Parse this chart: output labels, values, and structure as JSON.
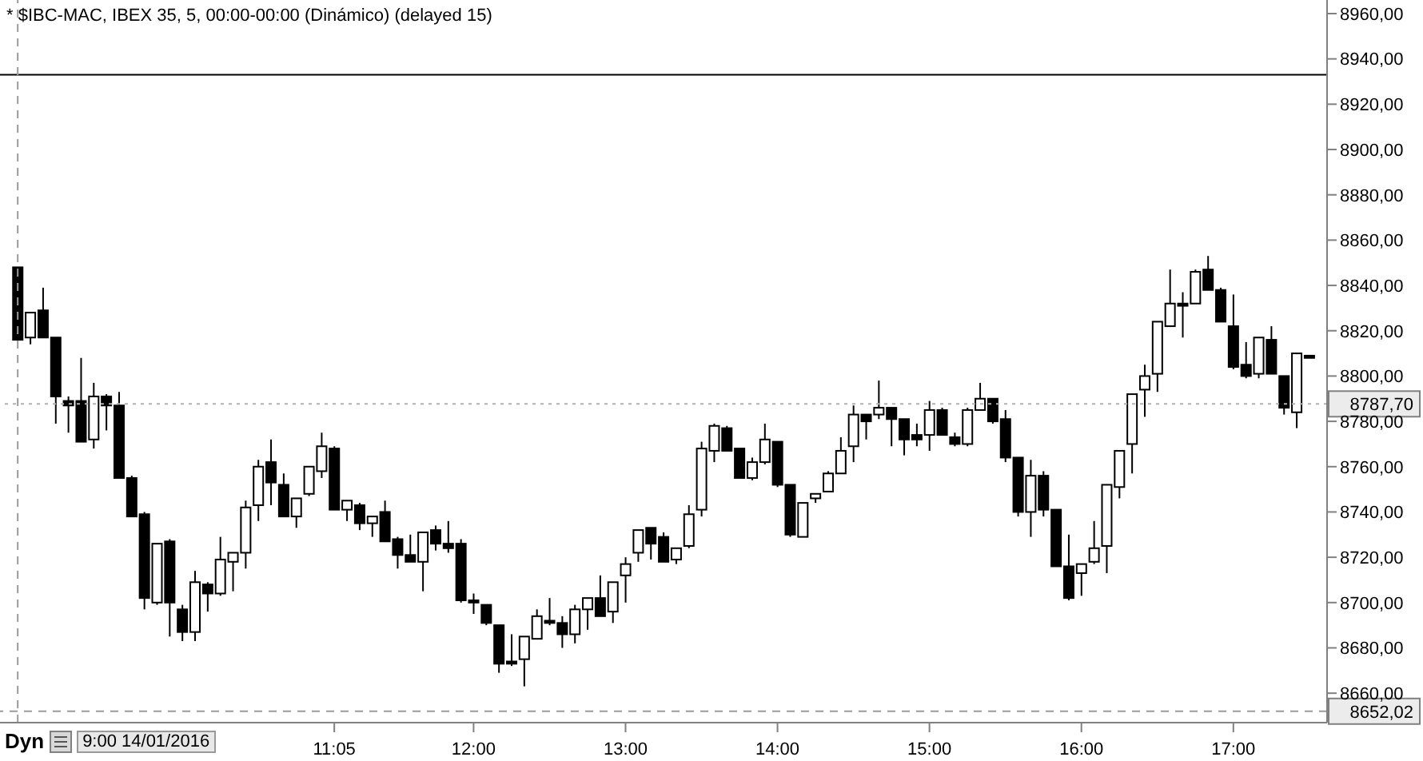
{
  "chart_data": {
    "type": "candlestick",
    "title": "* $IBC-MAC, IBEX 35, 5, 00:00-00:00 (Dinámico) (delayed 15)",
    "annotations": [
      "Dyn",
      "9:00 14/01/2016"
    ],
    "x": [
      "2016-01-14T09:00",
      "2016-01-14T09:05",
      "2016-01-14T09:10",
      "2016-01-14T09:15",
      "2016-01-14T09:20",
      "2016-01-14T09:25",
      "2016-01-14T09:30",
      "2016-01-14T09:35",
      "2016-01-14T09:40",
      "2016-01-14T09:45",
      "2016-01-14T09:50",
      "2016-01-14T09:55",
      "2016-01-14T10:00",
      "2016-01-14T10:05",
      "2016-01-14T10:10",
      "2016-01-14T10:15",
      "2016-01-14T10:20",
      "2016-01-14T10:25",
      "2016-01-14T10:30",
      "2016-01-14T10:35",
      "2016-01-14T10:40",
      "2016-01-14T10:45",
      "2016-01-14T10:50",
      "2016-01-14T10:55",
      "2016-01-14T11:00",
      "2016-01-14T11:05",
      "2016-01-14T11:10",
      "2016-01-14T11:15",
      "2016-01-14T11:20",
      "2016-01-14T11:25",
      "2016-01-14T11:30",
      "2016-01-14T11:35",
      "2016-01-14T11:40",
      "2016-01-14T11:45",
      "2016-01-14T11:50",
      "2016-01-14T11:55",
      "2016-01-14T12:00",
      "2016-01-14T12:05",
      "2016-01-14T12:10",
      "2016-01-14T12:15",
      "2016-01-14T12:20",
      "2016-01-14T12:25",
      "2016-01-14T12:30",
      "2016-01-14T12:35",
      "2016-01-14T12:40",
      "2016-01-14T12:45",
      "2016-01-14T12:50",
      "2016-01-14T12:55",
      "2016-01-14T13:00",
      "2016-01-14T13:05",
      "2016-01-14T13:10",
      "2016-01-14T13:15",
      "2016-01-14T13:20",
      "2016-01-14T13:25",
      "2016-01-14T13:30",
      "2016-01-14T13:35",
      "2016-01-14T13:40",
      "2016-01-14T13:45",
      "2016-01-14T13:50",
      "2016-01-14T13:55",
      "2016-01-14T14:00",
      "2016-01-14T14:05",
      "2016-01-14T14:10",
      "2016-01-14T14:15",
      "2016-01-14T14:20",
      "2016-01-14T14:25",
      "2016-01-14T14:30",
      "2016-01-14T14:35",
      "2016-01-14T14:40",
      "2016-01-14T14:45",
      "2016-01-14T14:50",
      "2016-01-14T14:55",
      "2016-01-14T15:00",
      "2016-01-14T15:05",
      "2016-01-14T15:10",
      "2016-01-14T15:15",
      "2016-01-14T15:20",
      "2016-01-14T15:25",
      "2016-01-14T15:30",
      "2016-01-14T15:35",
      "2016-01-14T15:40",
      "2016-01-14T15:45",
      "2016-01-14T15:50",
      "2016-01-14T15:55",
      "2016-01-14T16:00",
      "2016-01-14T16:05",
      "2016-01-14T16:10",
      "2016-01-14T16:15",
      "2016-01-14T16:20",
      "2016-01-14T16:25",
      "2016-01-14T16:30",
      "2016-01-14T16:35",
      "2016-01-14T16:40",
      "2016-01-14T16:45",
      "2016-01-14T16:50",
      "2016-01-14T16:55",
      "2016-01-14T17:00",
      "2016-01-14T17:05",
      "2016-01-14T17:10",
      "2016-01-14T17:15",
      "2016-01-14T17:20",
      "2016-01-14T17:25",
      "2016-01-14T17:30"
    ],
    "ohlc": [
      [
        8848,
        8848,
        8816,
        8816
      ],
      [
        8817,
        8828,
        8814,
        8828
      ],
      [
        8829,
        8839,
        8817,
        8817
      ],
      [
        8817,
        8817,
        8779,
        8791
      ],
      [
        8789,
        8791,
        8775,
        8787
      ],
      [
        8789,
        8808,
        8771,
        8771
      ],
      [
        8772,
        8797,
        8768,
        8791
      ],
      [
        8791,
        8792,
        8776,
        8787
      ],
      [
        8787,
        8793,
        8755,
        8755
      ],
      [
        8755,
        8756,
        8738,
        8738
      ],
      [
        8739,
        8740,
        8697,
        8702
      ],
      [
        8700,
        8726,
        8699,
        8726
      ],
      [
        8727,
        8728,
        8685,
        8700
      ],
      [
        8697,
        8699,
        8683,
        8687
      ],
      [
        8687,
        8714,
        8683,
        8709
      ],
      [
        8708,
        8709,
        8696,
        8704
      ],
      [
        8704,
        8729,
        8703,
        8719
      ],
      [
        8718,
        8722,
        8705,
        8722
      ],
      [
        8722,
        8745,
        8715,
        8742
      ],
      [
        8743,
        8763,
        8736,
        8760
      ],
      [
        8762,
        8772,
        8743,
        8753
      ],
      [
        8752,
        8757,
        8738,
        8738
      ],
      [
        8738,
        8746,
        8733,
        8746
      ],
      [
        8748,
        8760,
        8747,
        8760
      ],
      [
        8758,
        8775,
        8755,
        8769
      ],
      [
        8768,
        8769,
        8741,
        8741
      ],
      [
        8741,
        8745,
        8736,
        8745
      ],
      [
        8743,
        8744,
        8732,
        8735
      ],
      [
        8735,
        8738,
        8729,
        8738
      ],
      [
        8740,
        8745,
        8727,
        8727
      ],
      [
        8728,
        8729,
        8715,
        8721
      ],
      [
        8721,
        8730,
        8718,
        8718
      ],
      [
        8718,
        8731,
        8705,
        8731
      ],
      [
        8732,
        8734,
        8723,
        8726
      ],
      [
        8726,
        8736,
        8722,
        8724
      ],
      [
        8726,
        8728,
        8700,
        8701
      ],
      [
        8701,
        8704,
        8695,
        8700
      ],
      [
        8699,
        8699,
        8690,
        8691
      ],
      [
        8690,
        8690,
        8669,
        8673
      ],
      [
        8674,
        8686,
        8672,
        8673
      ],
      [
        8675,
        8685,
        8663,
        8685
      ],
      [
        8684,
        8697,
        8684,
        8694
      ],
      [
        8692,
        8702,
        8690,
        8691
      ],
      [
        8691,
        8694,
        8680,
        8686
      ],
      [
        8686,
        8699,
        8682,
        8697
      ],
      [
        8697,
        8702,
        8688,
        8702
      ],
      [
        8702,
        8712,
        8694,
        8694
      ],
      [
        8696,
        8709,
        8691,
        8709
      ],
      [
        8712,
        8720,
        8700,
        8717
      ],
      [
        8722,
        8732,
        8718,
        8732
      ],
      [
        8733,
        8733,
        8719,
        8726
      ],
      [
        8729,
        8731,
        8718,
        8718
      ],
      [
        8719,
        8724,
        8717,
        8724
      ],
      [
        8725,
        8743,
        8724,
        8739
      ],
      [
        8741,
        8771,
        8738,
        8768
      ],
      [
        8767,
        8779,
        8762,
        8778
      ],
      [
        8777,
        8778,
        8767,
        8767
      ],
      [
        8768,
        8768,
        8755,
        8755
      ],
      [
        8755,
        8764,
        8754,
        8762
      ],
      [
        8762,
        8779,
        8761,
        8772
      ],
      [
        8771,
        8771,
        8751,
        8752
      ],
      [
        8752,
        8752,
        8729,
        8730
      ],
      [
        8729,
        8744,
        8729,
        8744
      ],
      [
        8746,
        8748,
        8744,
        8748
      ],
      [
        8749,
        8758,
        8749,
        8757
      ],
      [
        8757,
        8773,
        8757,
        8767
      ],
      [
        8769,
        8787,
        8762,
        8783
      ],
      [
        8783,
        8783,
        8772,
        8780
      ],
      [
        8783,
        8798,
        8781,
        8786
      ],
      [
        8786,
        8786,
        8769,
        8781
      ],
      [
        8781,
        8781,
        8765,
        8772
      ],
      [
        8774,
        8779,
        8769,
        8772
      ],
      [
        8774,
        8789,
        8767,
        8785
      ],
      [
        8785,
        8786,
        8774,
        8774
      ],
      [
        8773,
        8775,
        8769,
        8770
      ],
      [
        8770,
        8786,
        8769,
        8785
      ],
      [
        8785,
        8797,
        8785,
        8790
      ],
      [
        8790,
        8790,
        8779,
        8780
      ],
      [
        8781,
        8785,
        8762,
        8764
      ],
      [
        8764,
        8764,
        8738,
        8740
      ],
      [
        8740,
        8763,
        8729,
        8756
      ],
      [
        8756,
        8758,
        8738,
        8741
      ],
      [
        8741,
        8741,
        8716,
        8716
      ],
      [
        8716,
        8730,
        8701,
        8702
      ],
      [
        8713,
        8717,
        8703,
        8717
      ],
      [
        8718,
        8736,
        8717,
        8724
      ],
      [
        8725,
        8752,
        8713,
        8752
      ],
      [
        8751,
        8767,
        8746,
        8767
      ],
      [
        8770,
        8792,
        8757,
        8792
      ],
      [
        8794,
        8805,
        8782,
        8800
      ],
      [
        8801,
        8824,
        8793,
        8824
      ],
      [
        8822,
        8847,
        8822,
        8832
      ],
      [
        8832,
        8837,
        8817,
        8831
      ],
      [
        8832,
        8847,
        8832,
        8846
      ],
      [
        8847,
        8853,
        8838,
        8838
      ],
      [
        8838,
        8839,
        8824,
        8824
      ],
      [
        8822,
        8836,
        8803,
        8804
      ],
      [
        8805,
        8815,
        8799,
        8800
      ],
      [
        8801,
        8817,
        8799,
        8817
      ],
      [
        8816,
        8822,
        8801,
        8801
      ],
      [
        8800,
        8800,
        8783,
        8786
      ],
      [
        8784,
        8810,
        8777,
        8810
      ],
      [
        8809,
        8809,
        8808,
        8808
      ]
    ],
    "color": "#000000",
    "xlim": [
      "2016-01-14T08:53",
      "2016-01-14T17:37"
    ],
    "xticks": [
      {
        "value": "2016-01-14T11:05",
        "label": "11:05"
      },
      {
        "value": "2016-01-14T12:00",
        "label": "12:00"
      },
      {
        "value": "2016-01-14T13:00",
        "label": "13:00"
      },
      {
        "value": "2016-01-14T14:00",
        "label": "14:00"
      },
      {
        "value": "2016-01-14T15:00",
        "label": "15:00"
      },
      {
        "value": "2016-01-14T16:00",
        "label": "16:00"
      },
      {
        "value": "2016-01-14T17:00",
        "label": "17:00"
      }
    ],
    "ylim": [
      8647,
      8966
    ],
    "yticks": [
      {
        "value": 8660,
        "label": "8660,00"
      },
      {
        "value": 8680,
        "label": "8680,00"
      },
      {
        "value": 8700,
        "label": "8700,00"
      },
      {
        "value": 8720,
        "label": "8720,00"
      },
      {
        "value": 8740,
        "label": "8740,00"
      },
      {
        "value": 8760,
        "label": "8760,00"
      },
      {
        "value": 8780,
        "label": "8780,00"
      },
      {
        "value": 8800,
        "label": "8800,00"
      },
      {
        "value": 8820,
        "label": "8820,00"
      },
      {
        "value": 8840,
        "label": "8840,00"
      },
      {
        "value": 8860,
        "label": "8860,00"
      },
      {
        "value": 8880,
        "label": "8880,00"
      },
      {
        "value": 8900,
        "label": "8900,00"
      },
      {
        "value": 8920,
        "label": "8920,00"
      },
      {
        "value": 8940,
        "label": "8940,00"
      },
      {
        "value": 8960,
        "label": "8960,00"
      }
    ],
    "ref_lines": [
      {
        "axis": "y",
        "value": 8933,
        "color": "#000000",
        "line_style": "solid"
      },
      {
        "axis": "y",
        "value": 8787.7,
        "label": "8787,70",
        "color": "#b0b0b0",
        "line_style": "dotted"
      },
      {
        "axis": "y",
        "value": 8652.02,
        "label": "8652,02",
        "color": "#9a9a9a",
        "line_style": "dashed"
      },
      {
        "axis": "x",
        "value": "2016-01-14T09:00",
        "color": "#9a9a9a",
        "line_style": "dashed"
      }
    ],
    "grid": false,
    "legend": false
  }
}
